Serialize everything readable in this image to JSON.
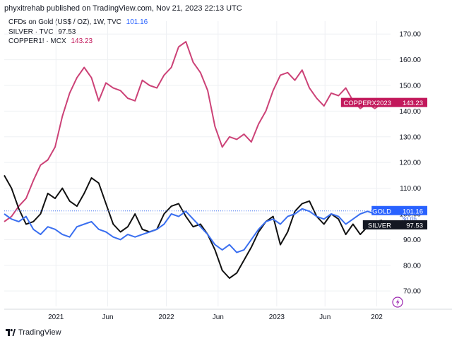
{
  "header": {
    "text": "phyxitrehab published on TradingView.com, Nov 21, 2023 22:13 UTC"
  },
  "legend": [
    {
      "label": "CFDs on Gold (US$ / OZ), 1W, TVC",
      "value": "101.16",
      "color": "#2962ff"
    },
    {
      "label": "SILVER · TVC",
      "value": "97.53",
      "color": "#131722"
    },
    {
      "label": "COPPER1! · MCX",
      "value": "143.23",
      "color": "#c2185b"
    }
  ],
  "footer": {
    "brand": "TradingView"
  },
  "colors": {
    "gold": "#3a6ff0",
    "silver": "#111111",
    "copper": "#cc4277",
    "grid": "#eef0f3"
  },
  "chart_data": {
    "type": "line",
    "x_tick_labels": [
      "2021",
      "Jun",
      "2022",
      "Jun",
      "2023",
      "Jun",
      "202"
    ],
    "x_tick_positions": [
      0.15,
      0.3,
      0.47,
      0.62,
      0.79,
      0.93,
      1.08
    ],
    "y_ticks": [
      70,
      80,
      90,
      100,
      110,
      120,
      130,
      140,
      150,
      160,
      170
    ],
    "ylim": [
      64,
      175
    ],
    "xlim": [
      0,
      1.2
    ],
    "series": [
      {
        "name": "COPPER1! · MCX",
        "short_label": "COPPERX2023",
        "last_value": "143.23",
        "color": "#cc4277",
        "x": [
          0.0,
          0.02,
          0.04,
          0.06,
          0.08,
          0.1,
          0.12,
          0.14,
          0.16,
          0.18,
          0.2,
          0.22,
          0.24,
          0.26,
          0.28,
          0.3,
          0.32,
          0.34,
          0.36,
          0.38,
          0.4,
          0.42,
          0.44,
          0.46,
          0.48,
          0.5,
          0.52,
          0.54,
          0.56,
          0.58,
          0.6,
          0.62,
          0.64,
          0.66,
          0.68,
          0.7,
          0.72,
          0.74,
          0.76,
          0.78,
          0.8,
          0.82,
          0.84,
          0.86,
          0.88,
          0.9,
          0.92,
          0.94,
          0.96,
          0.98,
          1.0,
          1.02,
          1.04
        ],
        "y": [
          97,
          99,
          103,
          106,
          113,
          119,
          121,
          126,
          138,
          147,
          153,
          157,
          153,
          144,
          151,
          149,
          148,
          145,
          144,
          152,
          150,
          149,
          154,
          157,
          165,
          167,
          159,
          155,
          148,
          134,
          126,
          130,
          129,
          131,
          128,
          135,
          140,
          148,
          154,
          155,
          152,
          156,
          149,
          145,
          142,
          147,
          146,
          149,
          144,
          141,
          143,
          141,
          143
        ]
      },
      {
        "name": "SILVER · TVC",
        "short_label": "SILVER",
        "last_value": "97.53",
        "color": "#111111",
        "x": [
          0.0,
          0.02,
          0.04,
          0.06,
          0.08,
          0.1,
          0.12,
          0.14,
          0.16,
          0.18,
          0.2,
          0.22,
          0.24,
          0.26,
          0.28,
          0.3,
          0.32,
          0.34,
          0.36,
          0.38,
          0.4,
          0.42,
          0.44,
          0.46,
          0.48,
          0.5,
          0.52,
          0.54,
          0.56,
          0.58,
          0.6,
          0.62,
          0.64,
          0.66,
          0.68,
          0.7,
          0.72,
          0.74,
          0.76,
          0.78,
          0.8,
          0.82,
          0.84,
          0.86,
          0.88,
          0.9,
          0.92,
          0.94,
          0.96,
          0.98,
          1.0,
          1.02,
          1.04
        ],
        "y": [
          115,
          110,
          102,
          96,
          97,
          100,
          108,
          106,
          110,
          105,
          103,
          108,
          114,
          112,
          104,
          96,
          93,
          95,
          100,
          94,
          93,
          94,
          100,
          103,
          104,
          99,
          95,
          96,
          92,
          86,
          78,
          75,
          77,
          82,
          87,
          93,
          97,
          99,
          88,
          93,
          101,
          104,
          105,
          99,
          96,
          100,
          98,
          92,
          96,
          92,
          95,
          97,
          97.5
        ]
      },
      {
        "name": "CFDs on Gold (US$ / OZ), 1W, TVC",
        "short_label": "GOLD",
        "last_value": "101.16",
        "sub_label": "3d 0h",
        "color": "#3a6ff0",
        "x": [
          0.0,
          0.02,
          0.04,
          0.06,
          0.08,
          0.1,
          0.12,
          0.14,
          0.16,
          0.18,
          0.2,
          0.22,
          0.24,
          0.26,
          0.28,
          0.3,
          0.32,
          0.34,
          0.36,
          0.38,
          0.4,
          0.42,
          0.44,
          0.46,
          0.48,
          0.5,
          0.52,
          0.54,
          0.56,
          0.58,
          0.6,
          0.62,
          0.64,
          0.66,
          0.68,
          0.7,
          0.72,
          0.74,
          0.76,
          0.78,
          0.8,
          0.82,
          0.84,
          0.86,
          0.88,
          0.9,
          0.92,
          0.94,
          0.96,
          0.98,
          1.0,
          1.02,
          1.04
        ],
        "y": [
          100,
          98,
          97,
          99,
          94,
          92,
          95,
          94,
          92,
          91,
          95,
          96,
          97,
          94,
          93,
          91,
          90,
          92,
          91,
          92,
          93,
          94,
          96,
          100,
          99,
          101,
          98,
          95,
          92,
          88,
          86,
          88,
          85,
          86,
          90,
          94,
          97,
          98,
          96,
          99,
          100,
          102,
          101,
          99,
          98,
          100,
          99,
          96,
          98,
          100,
          101,
          100,
          101.16
        ]
      }
    ]
  }
}
